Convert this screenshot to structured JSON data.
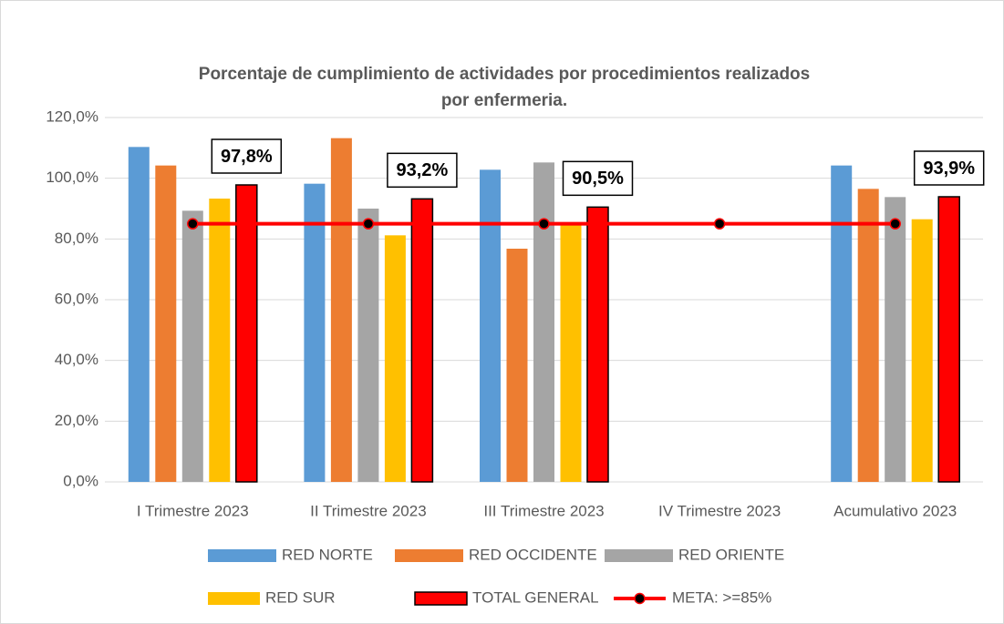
{
  "chart_data": {
    "type": "bar",
    "title": [
      "Porcentaje de cumplimiento de actividades por procedimientos realizados",
      "por enfermeria."
    ],
    "categories": [
      "I Trimestre 2023",
      "II Trimestre 2023",
      "III Trimestre 2023",
      "IV Trimestre 2023",
      "Acumulativo 2023"
    ],
    "series": [
      {
        "name": "RED NORTE",
        "color": "#5b9bd5",
        "values": [
          110.3,
          98.2,
          102.8,
          null,
          104.2
        ]
      },
      {
        "name": "RED OCCIDENTE",
        "color": "#ed7d31",
        "values": [
          104.2,
          113.2,
          76.8,
          null,
          96.5
        ]
      },
      {
        "name": "RED ORIENTE",
        "color": "#a5a5a5",
        "values": [
          89.3,
          90.0,
          105.2,
          null,
          93.8
        ]
      },
      {
        "name": "RED SUR",
        "color": "#ffc000",
        "values": [
          93.3,
          81.2,
          84.5,
          null,
          86.5
        ]
      },
      {
        "name": "TOTAL GENERAL",
        "color": "#ff0000",
        "border": "#000000",
        "values": [
          97.8,
          93.2,
          90.5,
          null,
          93.9
        ],
        "value_labels": [
          "97,8%",
          "93,2%",
          "90,5%",
          null,
          "93,9%"
        ]
      },
      {
        "name": "META: >=85%",
        "type": "line",
        "color": "#ff0000",
        "marker_color": "#000000",
        "values": [
          85,
          85,
          85,
          85,
          85
        ]
      }
    ],
    "ylim": [
      0,
      120
    ],
    "yticks": [
      {
        "value": 0,
        "label": "0,0%"
      },
      {
        "value": 20,
        "label": "20,0%"
      },
      {
        "value": 40,
        "label": "40,0%"
      },
      {
        "value": 60,
        "label": "60,0%"
      },
      {
        "value": 80,
        "label": "80,0%"
      },
      {
        "value": 100,
        "label": "100,0%"
      },
      {
        "value": 120,
        "label": "120,0%"
      }
    ],
    "grid": true,
    "legend": "bottom"
  }
}
